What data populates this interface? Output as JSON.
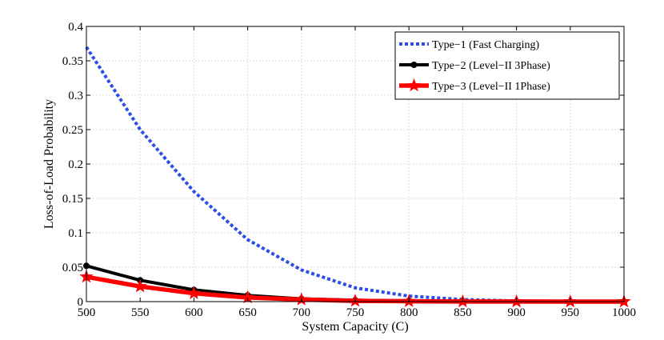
{
  "chart_data": {
    "type": "line",
    "title": "",
    "xlabel": "System Capacity (C)",
    "ylabel": "Loss-of-Load Probability",
    "xlim": [
      500,
      1000
    ],
    "ylim": [
      0,
      0.4
    ],
    "grid": true,
    "legend_position": "top-right",
    "x_tick_labels": [
      "500",
      "550",
      "600",
      "650",
      "700",
      "750",
      "800",
      "850",
      "900",
      "950",
      "1000"
    ],
    "y_tick_labels": [
      "0",
      "0.05",
      "0.1",
      "0.15",
      "0.2",
      "0.25",
      "0.3",
      "0.35",
      "0.4"
    ],
    "series": [
      {
        "name": "Type−1 (Fast Charging)",
        "color": "#2b4de8",
        "style": "dotted",
        "marker": "none",
        "x": [
          500,
          550,
          600,
          650,
          700,
          750,
          800,
          850,
          900,
          950,
          1000
        ],
        "values": [
          0.37,
          0.25,
          0.16,
          0.09,
          0.046,
          0.02,
          0.008,
          0.003,
          0.001,
          0.0004,
          0.0001
        ]
      },
      {
        "name": "Type−2 (Level−II 3Phase)",
        "color": "#000000",
        "style": "solid",
        "marker": "circle",
        "x": [
          500,
          550,
          600,
          650,
          700,
          750,
          800,
          850,
          900,
          950,
          1000
        ],
        "values": [
          0.052,
          0.031,
          0.017,
          0.009,
          0.004,
          0.002,
          0.001,
          0.0005,
          0.0002,
          0.0001,
          0.0
        ]
      },
      {
        "name": "Type−3 (Level−II 1Phase)",
        "color": "#ff0000",
        "style": "solid",
        "marker": "star",
        "x": [
          500,
          550,
          600,
          650,
          700,
          750,
          800,
          850,
          900,
          950,
          1000
        ],
        "values": [
          0.036,
          0.022,
          0.012,
          0.006,
          0.003,
          0.001,
          0.0005,
          0.0002,
          0.0001,
          0.0,
          0.0
        ]
      }
    ]
  }
}
